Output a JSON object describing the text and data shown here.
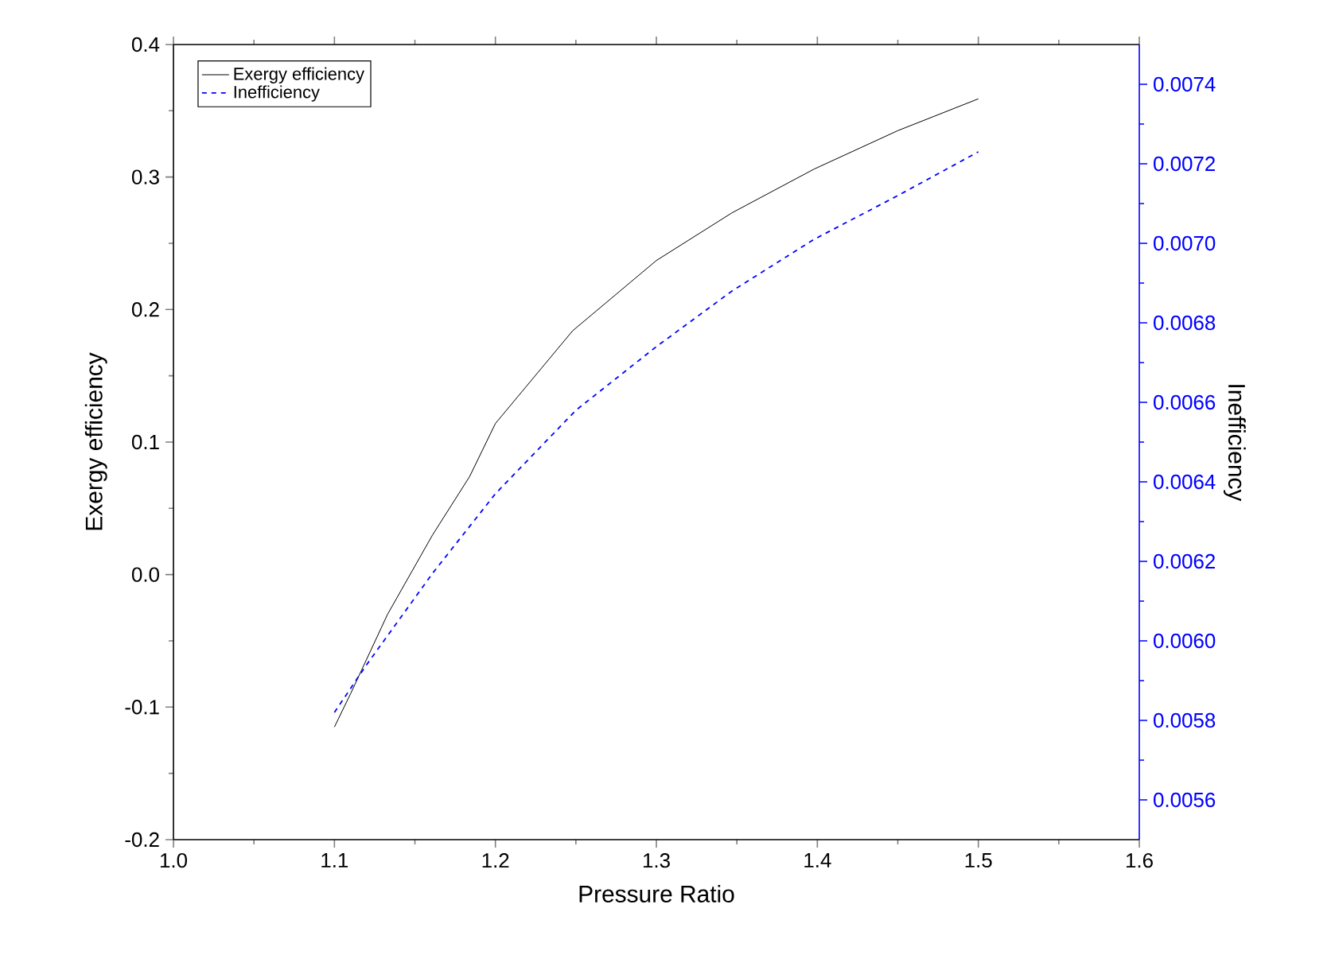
{
  "chart_data": {
    "type": "line",
    "xlabel": "Pressure Ratio",
    "ylabel": "Exergy efficiency",
    "y2label": "Inefficiency",
    "xlim": [
      1.0,
      1.6
    ],
    "xticks": [
      {
        "value": 1.0,
        "label": "1.0"
      },
      1.1,
      1.2,
      1.3,
      1.4,
      1.5,
      1.6
    ],
    "ylim": [
      -0.2,
      0.4
    ],
    "yticks": [
      -0.2,
      -0.1,
      {
        "value": 0.0,
        "label": "0.0"
      },
      0.1,
      0.2,
      0.3,
      0.4
    ],
    "y2lim": [
      0.0055,
      0.0075
    ],
    "y2ticks": [
      0.0056,
      0.0058,
      {
        "value": 0.006,
        "label": "0.0060"
      },
      0.0062,
      0.0064,
      0.0066,
      0.0068,
      {
        "value": 0.007,
        "label": "0.0070"
      },
      0.0072,
      0.0074
    ],
    "legend": "top left",
    "series": [
      {
        "name": "Exergy efficiency",
        "color": "#000000",
        "line_style": "solid",
        "x": [
          1.1,
          1.11,
          1.133,
          1.161,
          1.184,
          1.2,
          1.248,
          1.3,
          1.347,
          1.398,
          1.45,
          1.5
        ],
        "values": [
          -0.115,
          -0.09,
          -0.03,
          0.03,
          0.074,
          0.114,
          0.184,
          0.237,
          0.273,
          0.306,
          0.335,
          0.359
        ]
      },
      {
        "name": "Inefficiency",
        "color": "#0000ff",
        "line_style": "dashed",
        "axis": "y2",
        "x": [
          1.1,
          1.12,
          1.161,
          1.2,
          1.25,
          1.3,
          1.347,
          1.398,
          1.45,
          1.5
        ],
        "values": [
          0.00582,
          0.00594,
          0.00617,
          0.00637,
          0.00658,
          0.00674,
          0.00688,
          0.00701,
          0.00712,
          0.00723
        ]
      }
    ]
  }
}
